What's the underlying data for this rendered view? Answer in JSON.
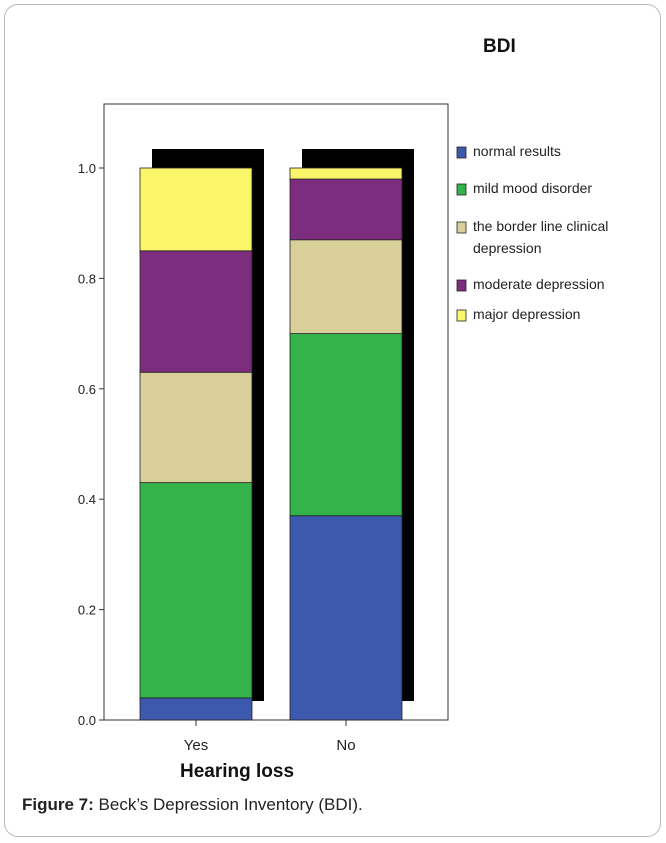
{
  "chart_data": {
    "type": "bar",
    "stacked": true,
    "title": "BDI",
    "xlabel": "Hearing loss",
    "ylabel": "",
    "ylim": [
      0,
      1.0
    ],
    "yticks": [
      "0.0",
      "0.2",
      "0.4",
      "0.6",
      "0.8",
      "1.0"
    ],
    "categories": [
      "Yes",
      "No"
    ],
    "series": [
      {
        "name": "normal results",
        "color": "#3c59ad",
        "values": [
          0.04,
          0.37
        ]
      },
      {
        "name": "mild mood disorder",
        "color": "#33b34a",
        "values": [
          0.39,
          0.33
        ]
      },
      {
        "name": "the border line clinical depression",
        "color": "#d8cf9b",
        "values": [
          0.2,
          0.17
        ]
      },
      {
        "name": "moderate depression",
        "color": "#7d2d7d",
        "values": [
          0.22,
          0.11
        ]
      },
      {
        "name": "major depression",
        "color": "#fbf56a",
        "values": [
          0.15,
          0.02
        ]
      }
    ],
    "legend_position": "right",
    "grid": false
  },
  "legend_lines": [
    [
      "normal results"
    ],
    [
      "mild mood disorder"
    ],
    [
      "the border line clinical",
      "depression"
    ],
    [
      " moderate depression"
    ],
    [
      "major depression"
    ]
  ],
  "caption": {
    "label": "Figure 7:",
    "text": " Beck’s  Depression  Inventory (BDI)."
  }
}
